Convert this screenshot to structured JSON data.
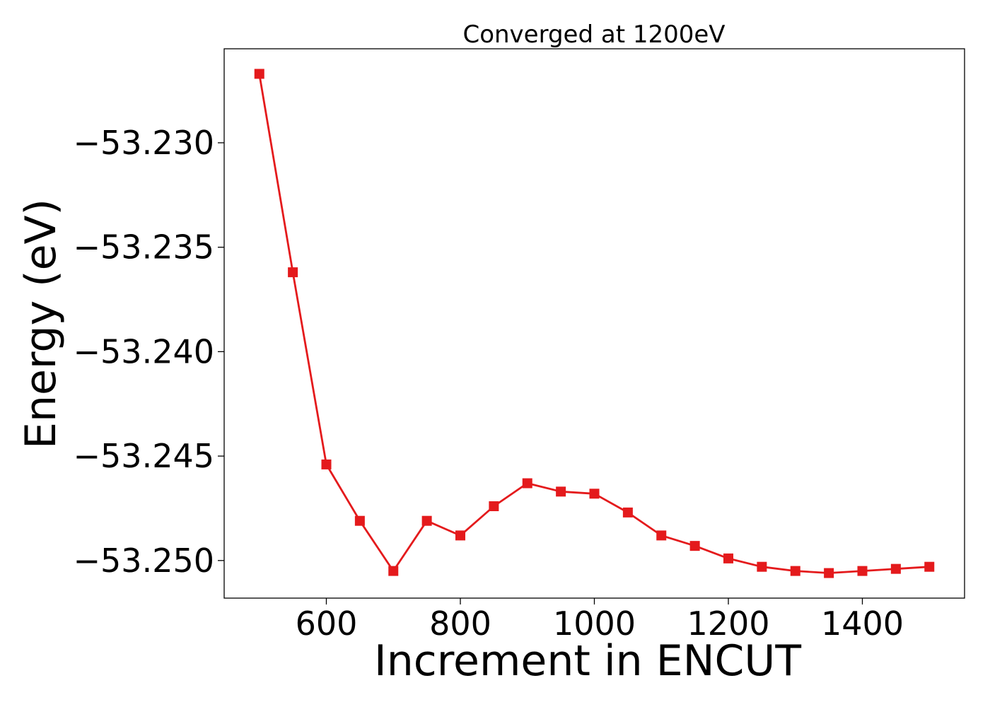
{
  "chart_data": {
    "type": "line",
    "title": "Converged at 1200eV",
    "xlabel": "Increment in ENCUT",
    "ylabel": "Energy (eV)",
    "xlim": [
      447.5,
      1552.5
    ],
    "ylim": [
      -53.2518,
      -53.2255
    ],
    "x_ticks": [
      600,
      800,
      1000,
      1200,
      1400
    ],
    "x_tick_labels": [
      "600",
      "800",
      "1000",
      "1200",
      "1400"
    ],
    "y_ticks": [
      -53.23,
      -53.235,
      -53.24,
      -53.245,
      -53.25
    ],
    "y_tick_labels": [
      "−53.230",
      "−53.235",
      "−53.240",
      "−53.245",
      "−53.250"
    ],
    "grid": false,
    "series": [
      {
        "color": "#e41a1c",
        "marker": "square",
        "x": [
          500,
          550,
          600,
          650,
          700,
          750,
          800,
          850,
          900,
          950,
          1000,
          1050,
          1100,
          1150,
          1200,
          1250,
          1300,
          1350,
          1400,
          1450,
          1500
        ],
        "y": [
          -53.2267,
          -53.2362,
          -53.2454,
          -53.2481,
          -53.2505,
          -53.2481,
          -53.2488,
          -53.2474,
          -53.2463,
          -53.2467,
          -53.2468,
          -53.2477,
          -53.2488,
          -53.2493,
          -53.2499,
          -53.2503,
          -53.2505,
          -53.2506,
          -53.2505,
          -53.2504,
          -53.2503
        ]
      }
    ]
  }
}
